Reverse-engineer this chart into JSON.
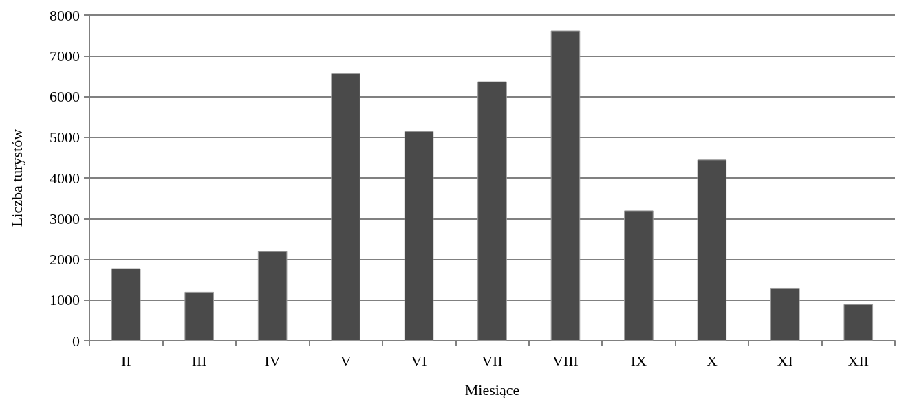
{
  "chart_data": {
    "type": "bar",
    "xlabel": "Miesiące",
    "ylabel": "Liczba turystów",
    "categories": [
      "II",
      "III",
      "IV",
      "V",
      "VI",
      "VII",
      "VIII",
      "IX",
      "X",
      "XI",
      "XII"
    ],
    "values": [
      1780,
      1200,
      2200,
      6580,
      5150,
      6370,
      7620,
      3200,
      4450,
      1300,
      900
    ],
    "color": "#4a4a4a",
    "ylim": [
      0,
      8000
    ],
    "yticks": [
      0,
      1000,
      2000,
      3000,
      4000,
      5000,
      6000,
      7000,
      8000
    ],
    "grid": "y"
  }
}
